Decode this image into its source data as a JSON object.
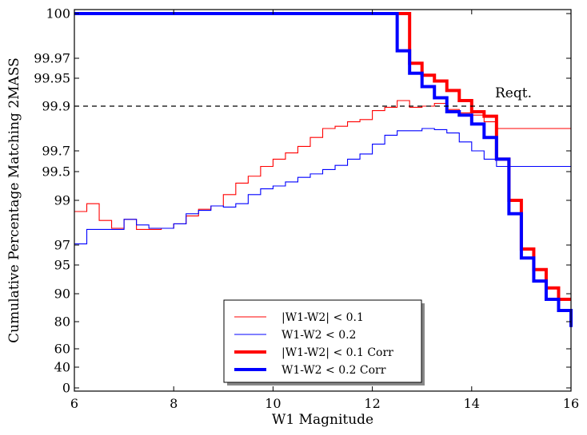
{
  "chart_data": {
    "type": "line",
    "xlabel": "W1 Magnitude",
    "ylabel": "Cumulative Percentage Matching 2MASS",
    "xlim": [
      6,
      16
    ],
    "x_ticks": [
      6,
      8,
      10,
      12,
      14,
      16
    ],
    "y_scale": "nonlinear (stretched near 100)",
    "y_ticks": [
      {
        "label": "100",
        "value": 100
      },
      {
        "label": "99.97",
        "value": 99.97
      },
      {
        "label": "99.95",
        "value": 99.95
      },
      {
        "label": "99.9",
        "value": 99.9
      },
      {
        "label": "99.7",
        "value": 99.7
      },
      {
        "label": "99.5",
        "value": 99.5
      },
      {
        "label": "99",
        "value": 99
      },
      {
        "label": "97",
        "value": 97
      },
      {
        "label": "95",
        "value": 95
      },
      {
        "label": "90",
        "value": 90
      },
      {
        "label": "80",
        "value": 80
      },
      {
        "label": "60",
        "value": 60
      },
      {
        "label": "40",
        "value": 40
      },
      {
        "label": "0",
        "value": 0
      }
    ],
    "reference_line": {
      "value": 99.9,
      "label": "Reqt.",
      "style": "dashed"
    },
    "legend_position": "lower-center",
    "grid": false,
    "series": [
      {
        "name": "|W1-W2| < 0.1",
        "color": "#ff0000",
        "width": "thin",
        "step_x": [
          6.0,
          6.25,
          6.5,
          6.75,
          7.0,
          7.25,
          7.5,
          7.75,
          8.0,
          8.25,
          8.5,
          8.75,
          9.0,
          9.25,
          9.5,
          9.75,
          10.0,
          10.25,
          10.5,
          10.75,
          11.0,
          11.25,
          11.5,
          11.75,
          12.0,
          12.25,
          12.5,
          12.75,
          13.0,
          13.25,
          13.5,
          13.75,
          14.0,
          14.25,
          14.5
        ],
        "y": [
          98.5,
          98.85,
          98.1,
          97.75,
          98.15,
          97.7,
          97.7,
          97.75,
          97.95,
          98.3,
          98.6,
          98.75,
          99.1,
          99.3,
          99.42,
          99.55,
          99.62,
          99.68,
          99.72,
          99.76,
          99.8,
          99.81,
          99.83,
          99.84,
          99.88,
          99.895,
          99.91,
          99.895,
          99.9,
          99.905,
          99.885,
          99.87,
          99.86,
          99.83,
          99.8
        ]
      },
      {
        "name": "W1-W2  < 0.2",
        "color": "#0000ff",
        "width": "thin",
        "step_x": [
          6.0,
          6.25,
          6.5,
          6.75,
          7.0,
          7.25,
          7.5,
          7.75,
          8.0,
          8.25,
          8.5,
          8.75,
          9.0,
          9.25,
          9.5,
          9.75,
          10.0,
          10.25,
          10.5,
          10.75,
          11.0,
          11.25,
          11.5,
          11.75,
          12.0,
          12.25,
          12.5,
          12.75,
          13.0,
          13.25,
          13.5,
          13.75,
          14.0,
          14.25,
          14.5
        ],
        "y": [
          97.05,
          97.7,
          97.7,
          97.7,
          98.15,
          97.9,
          97.75,
          97.75,
          97.95,
          98.4,
          98.55,
          98.75,
          98.7,
          98.85,
          99.1,
          99.2,
          99.25,
          99.32,
          99.4,
          99.46,
          99.52,
          99.56,
          99.62,
          99.67,
          99.73,
          99.77,
          99.79,
          99.79,
          99.8,
          99.795,
          99.78,
          99.74,
          99.7,
          99.62,
          99.55
        ]
      },
      {
        "name": "|W1-W2| < 0.1 Corr",
        "color": "#ff0000",
        "width": "thick",
        "step_x": [
          6.0,
          12.75,
          13.0,
          13.25,
          13.5,
          13.75,
          14.0,
          14.25,
          14.5,
          14.75,
          15.0,
          15.25,
          15.5,
          15.75,
          16.0
        ],
        "y": [
          100,
          99.965,
          99.953,
          99.945,
          99.928,
          99.91,
          99.875,
          99.855,
          99.62,
          99.0,
          96.6,
          94.2,
          91.0,
          88.0,
          88.0
        ]
      },
      {
        "name": "W1-W2  < 0.2 Corr",
        "color": "#0000ff",
        "width": "thick",
        "step_x": [
          6.0,
          12.5,
          12.75,
          13.0,
          13.25,
          13.5,
          13.75,
          14.0,
          14.25,
          14.5,
          14.75,
          15.0,
          15.25,
          15.5,
          15.75,
          16.0
        ],
        "y": [
          100,
          99.975,
          99.955,
          99.935,
          99.915,
          99.875,
          99.86,
          99.82,
          99.76,
          99.62,
          98.4,
          95.7,
          92.2,
          88.0,
          84.0,
          76.0
        ]
      }
    ]
  }
}
